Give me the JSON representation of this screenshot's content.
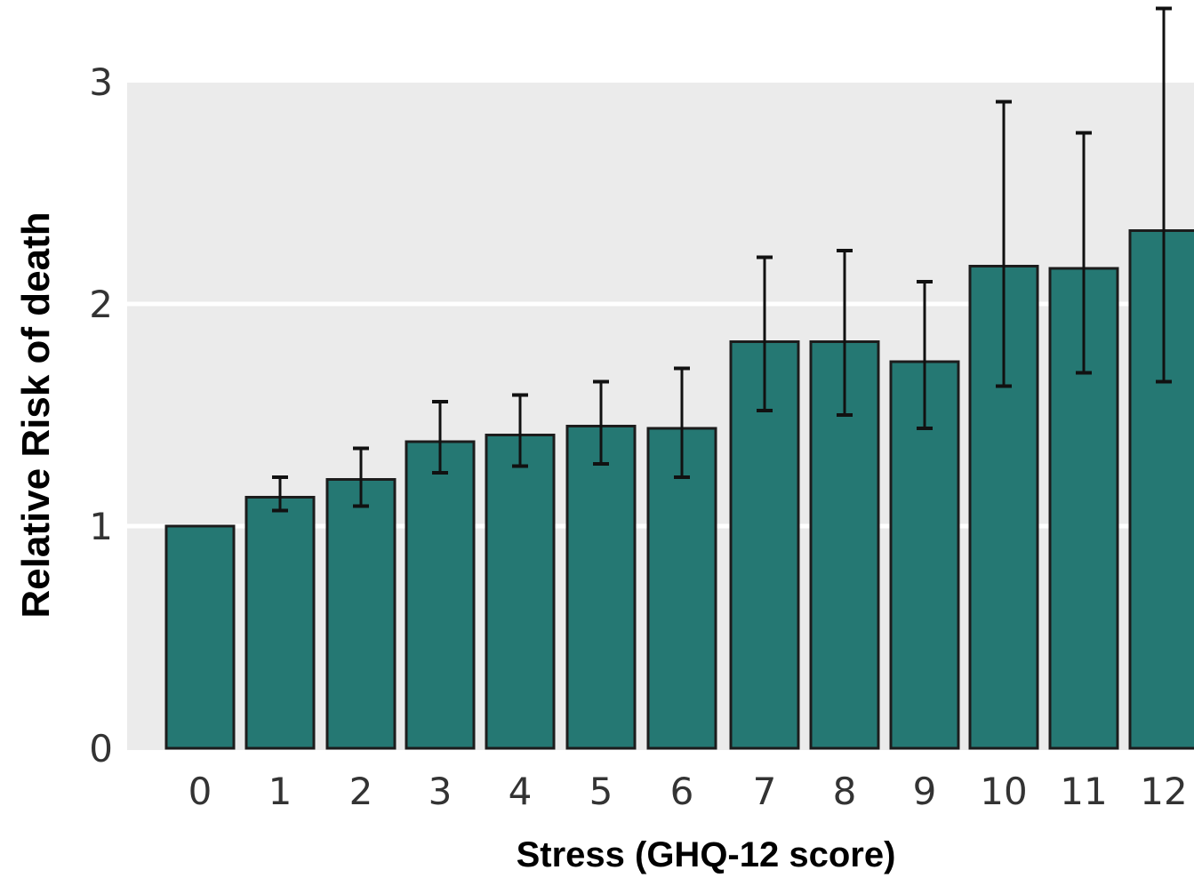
{
  "chart_data": {
    "type": "bar",
    "title": "",
    "xlabel": "Stress (GHQ-12 score)",
    "ylabel": "Relative Risk of death",
    "ylim": [
      0,
      3
    ],
    "yticks": [
      0,
      1,
      2,
      3
    ],
    "ytick_labels": [
      "0",
      "1",
      "2",
      "3"
    ],
    "grid": true,
    "categories": [
      "0",
      "1",
      "2",
      "3",
      "4",
      "5",
      "6",
      "7",
      "8",
      "9",
      "10",
      "11",
      "12"
    ],
    "values": [
      1.0,
      1.13,
      1.21,
      1.38,
      1.41,
      1.45,
      1.44,
      1.83,
      1.83,
      1.74,
      2.17,
      2.16,
      2.33
    ],
    "ci_lower": [
      null,
      1.07,
      1.09,
      1.24,
      1.27,
      1.28,
      1.22,
      1.52,
      1.5,
      1.44,
      1.63,
      1.69,
      1.65
    ],
    "ci_upper": [
      null,
      1.22,
      1.35,
      1.56,
      1.59,
      1.65,
      1.71,
      2.21,
      2.24,
      2.1,
      2.91,
      2.77,
      3.33
    ],
    "colors": {
      "bar": "#257873",
      "bar_edge": "#1c1c1c",
      "panel_background": "#ebebeb",
      "gridline": "#ffffff",
      "errorbar": "#111111"
    }
  }
}
